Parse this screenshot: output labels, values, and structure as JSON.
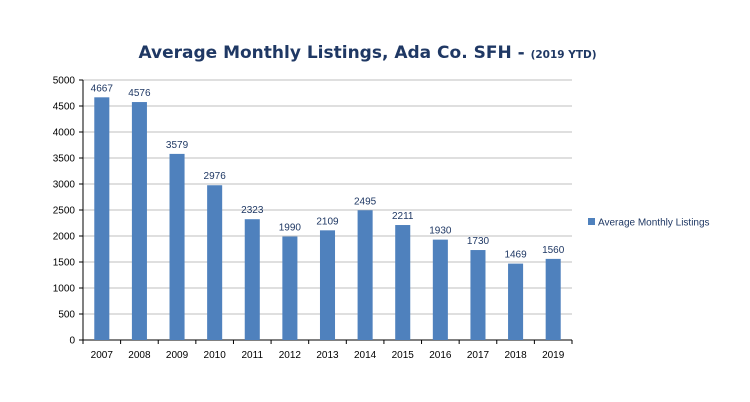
{
  "chart_data": {
    "type": "bar",
    "title": "Average Monthly Listings,  Ada Co. SFH - ",
    "subtitle": "(2019 YTD)",
    "xlabel": "",
    "ylabel": "",
    "categories": [
      "2007",
      "2008",
      "2009",
      "2010",
      "2011",
      "2012",
      "2013",
      "2014",
      "2015",
      "2016",
      "2017",
      "2018",
      "2019"
    ],
    "series": [
      {
        "name": "Average Monthly Listings",
        "values": [
          4667,
          4576,
          3579,
          2976,
          2323,
          1990,
          2109,
          2495,
          2211,
          1930,
          1730,
          1469,
          1560
        ],
        "color": "#4F81BD"
      }
    ],
    "ylim": [
      0,
      5000
    ],
    "yticks": [
      "0",
      "500",
      "1000",
      "1500",
      "2000",
      "2500",
      "3000",
      "3500",
      "4000",
      "4500",
      "5000"
    ],
    "grid": true,
    "legend": "right",
    "data_labels": true
  }
}
